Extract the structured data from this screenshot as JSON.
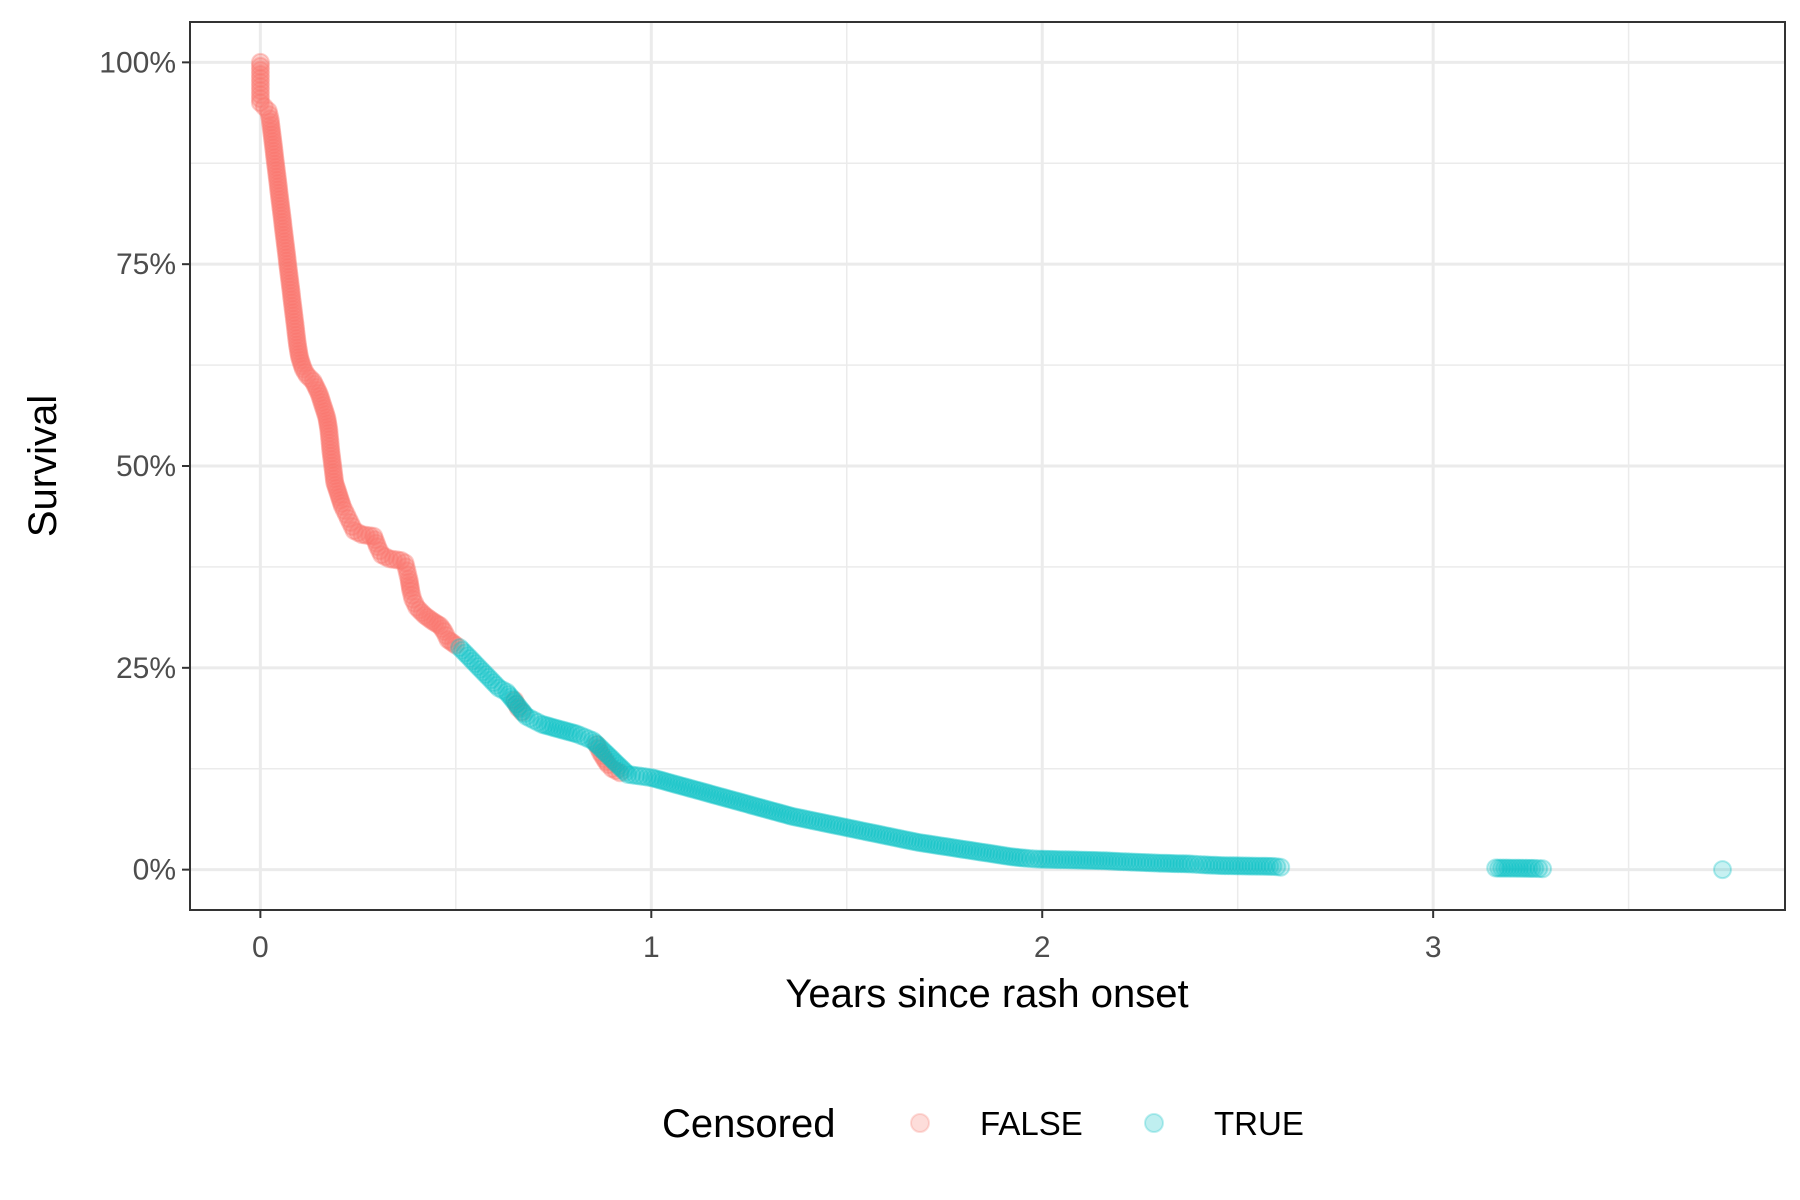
{
  "chart_data": {
    "type": "scatter",
    "xlabel": "Years since rash onset",
    "ylabel": "Survival",
    "xlim": [
      -0.18,
      3.9
    ],
    "ylim": [
      -0.05,
      1.05
    ],
    "x_ticks": [
      0,
      1,
      2,
      3
    ],
    "x_tick_labels": [
      "0",
      "1",
      "2",
      "3"
    ],
    "y_ticks": [
      0,
      0.25,
      0.5,
      0.75,
      1.0
    ],
    "y_tick_labels": [
      "0%",
      "25%",
      "50%",
      "75%",
      "100%"
    ],
    "grid": true,
    "legend": {
      "title": "Censored",
      "position": "bottom",
      "entries": [
        {
          "label": "FALSE",
          "color": "#F8766D"
        },
        {
          "label": "TRUE",
          "color": "#00BFC4"
        }
      ]
    },
    "series": [
      {
        "name": "FALSE",
        "color": "#F8766D",
        "points": [
          [
            0.0,
            1.0
          ],
          [
            0.0,
            0.99
          ],
          [
            0.0,
            0.98
          ],
          [
            0.0,
            0.97
          ],
          [
            0.0,
            0.96
          ],
          [
            0.0,
            0.95
          ],
          [
            0.01,
            0.945
          ],
          [
            0.02,
            0.94
          ],
          [
            0.025,
            0.93
          ],
          [
            0.03,
            0.91
          ],
          [
            0.035,
            0.89
          ],
          [
            0.04,
            0.87
          ],
          [
            0.045,
            0.85
          ],
          [
            0.05,
            0.83
          ],
          [
            0.055,
            0.81
          ],
          [
            0.06,
            0.79
          ],
          [
            0.065,
            0.77
          ],
          [
            0.07,
            0.75
          ],
          [
            0.075,
            0.73
          ],
          [
            0.08,
            0.71
          ],
          [
            0.085,
            0.69
          ],
          [
            0.09,
            0.67
          ],
          [
            0.095,
            0.65
          ],
          [
            0.1,
            0.635
          ],
          [
            0.11,
            0.62
          ],
          [
            0.12,
            0.612
          ],
          [
            0.135,
            0.605
          ],
          [
            0.15,
            0.59
          ],
          [
            0.16,
            0.575
          ],
          [
            0.17,
            0.56
          ],
          [
            0.175,
            0.545
          ],
          [
            0.18,
            0.52
          ],
          [
            0.185,
            0.5
          ],
          [
            0.19,
            0.48
          ],
          [
            0.2,
            0.465
          ],
          [
            0.21,
            0.45
          ],
          [
            0.22,
            0.44
          ],
          [
            0.23,
            0.43
          ],
          [
            0.24,
            0.42
          ],
          [
            0.26,
            0.415
          ],
          [
            0.29,
            0.413
          ],
          [
            0.3,
            0.4
          ],
          [
            0.31,
            0.39
          ],
          [
            0.33,
            0.385
          ],
          [
            0.36,
            0.383
          ],
          [
            0.37,
            0.38
          ],
          [
            0.375,
            0.37
          ],
          [
            0.38,
            0.36
          ],
          [
            0.385,
            0.345
          ],
          [
            0.39,
            0.335
          ],
          [
            0.4,
            0.325
          ],
          [
            0.42,
            0.315
          ],
          [
            0.44,
            0.308
          ],
          [
            0.46,
            0.302
          ],
          [
            0.47,
            0.295
          ],
          [
            0.48,
            0.285
          ],
          [
            0.5,
            0.278
          ],
          [
            0.65,
            0.21
          ],
          [
            0.66,
            0.2
          ],
          [
            0.67,
            0.195
          ],
          [
            0.86,
            0.155
          ],
          [
            0.87,
            0.145
          ],
          [
            0.88,
            0.137
          ],
          [
            0.89,
            0.13
          ],
          [
            0.9,
            0.125
          ],
          [
            0.92,
            0.12
          ]
        ]
      },
      {
        "name": "TRUE",
        "color": "#00BFC4",
        "points": [
          [
            0.51,
            0.275
          ],
          [
            0.53,
            0.265
          ],
          [
            0.55,
            0.255
          ],
          [
            0.57,
            0.245
          ],
          [
            0.59,
            0.235
          ],
          [
            0.61,
            0.225
          ],
          [
            0.63,
            0.22
          ],
          [
            0.68,
            0.19
          ],
          [
            0.7,
            0.185
          ],
          [
            0.72,
            0.18
          ],
          [
            0.75,
            0.176
          ],
          [
            0.78,
            0.172
          ],
          [
            0.81,
            0.168
          ],
          [
            0.83,
            0.164
          ],
          [
            0.85,
            0.16
          ],
          [
            0.94,
            0.118
          ],
          [
            0.97,
            0.116
          ],
          [
            1.0,
            0.114
          ],
          [
            1.03,
            0.11
          ],
          [
            1.06,
            0.106
          ],
          [
            1.09,
            0.102
          ],
          [
            1.12,
            0.098
          ],
          [
            1.15,
            0.094
          ],
          [
            1.18,
            0.09
          ],
          [
            1.21,
            0.086
          ],
          [
            1.24,
            0.082
          ],
          [
            1.27,
            0.078
          ],
          [
            1.3,
            0.074
          ],
          [
            1.33,
            0.07
          ],
          [
            1.36,
            0.066
          ],
          [
            1.4,
            0.062
          ],
          [
            1.44,
            0.058
          ],
          [
            1.48,
            0.054
          ],
          [
            1.52,
            0.05
          ],
          [
            1.56,
            0.046
          ],
          [
            1.6,
            0.042
          ],
          [
            1.64,
            0.038
          ],
          [
            1.68,
            0.034
          ],
          [
            1.72,
            0.031
          ],
          [
            1.76,
            0.028
          ],
          [
            1.8,
            0.025
          ],
          [
            1.84,
            0.022
          ],
          [
            1.88,
            0.019
          ],
          [
            1.92,
            0.016
          ],
          [
            1.96,
            0.014
          ],
          [
            1.99,
            0.013
          ],
          [
            2.08,
            0.012
          ],
          [
            2.16,
            0.011
          ],
          [
            2.2,
            0.01
          ],
          [
            2.25,
            0.009
          ],
          [
            2.3,
            0.008
          ],
          [
            2.38,
            0.007
          ],
          [
            2.41,
            0.006
          ],
          [
            2.46,
            0.005
          ],
          [
            2.59,
            0.004
          ],
          [
            2.61,
            0.003
          ],
          [
            3.16,
            0.002
          ],
          [
            3.26,
            0.0015
          ],
          [
            3.28,
            0.001
          ],
          [
            3.74,
            0.0
          ]
        ]
      }
    ]
  }
}
